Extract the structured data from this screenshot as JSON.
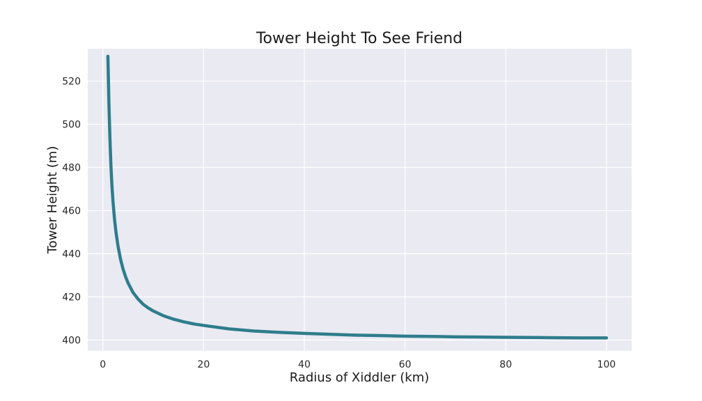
{
  "chart_data": {
    "type": "line",
    "title": "Tower Height To See Friend",
    "xlabel": "Radius of Xiddler (km)",
    "ylabel": "Tower Height (m)",
    "xlim": [
      -3,
      105
    ],
    "ylim": [
      395,
      535
    ],
    "xticks": [
      0,
      20,
      40,
      60,
      80,
      100
    ],
    "yticks": [
      400,
      420,
      440,
      460,
      480,
      500,
      520
    ],
    "grid": true,
    "background_color": "#eaeaf2",
    "series": [
      {
        "color": "#2e7d8c",
        "x": [
          1.0,
          1.2,
          1.4,
          1.6,
          1.8,
          2.0,
          2.3,
          2.6,
          3.0,
          3.5,
          4.0,
          4.5,
          5.0,
          6.0,
          7.0,
          8.0,
          9.0,
          10.0,
          12.0,
          14.0,
          16.0,
          18.0,
          20.0,
          25.0,
          30.0,
          35.0,
          40.0,
          45.0,
          50.0,
          55.0,
          60.0,
          65.0,
          70.0,
          75.0,
          80.0,
          85.0,
          90.0,
          95.0,
          100.0
        ],
        "y": [
          531.5,
          510.0,
          493.8,
          481.0,
          471.7,
          464.6,
          456.3,
          450.1,
          443.7,
          437.6,
          433.0,
          429.4,
          426.5,
          422.0,
          419.0,
          416.6,
          414.9,
          413.5,
          411.3,
          409.7,
          408.5,
          407.5,
          406.8,
          405.2,
          404.2,
          403.6,
          403.1,
          402.7,
          402.3,
          402.1,
          401.8,
          401.7,
          401.5,
          401.4,
          401.3,
          401.2,
          401.1,
          401.0,
          401.0
        ]
      }
    ]
  }
}
